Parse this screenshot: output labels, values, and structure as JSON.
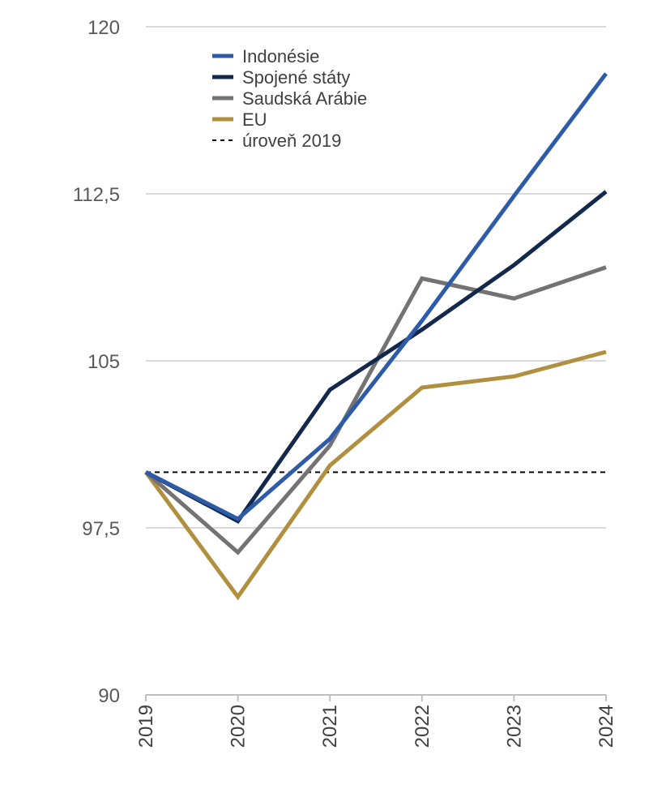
{
  "chart_data": {
    "type": "line",
    "title": "",
    "xlabel": "",
    "ylabel": "",
    "categories": [
      "2019",
      "2020",
      "2021",
      "2022",
      "2023",
      "2024"
    ],
    "ylim": [
      90,
      120
    ],
    "yticks": [
      90,
      97.5,
      105,
      112.5,
      120
    ],
    "ytick_labels": [
      "90",
      "97,5",
      "105",
      "112,5",
      "120"
    ],
    "grid": true,
    "legend_position": "top-left",
    "series": [
      {
        "name": "Indonésie",
        "color": "#2E5BA8",
        "values": [
          100,
          97.9,
          101.5,
          106.8,
          112.4,
          117.9
        ]
      },
      {
        "name": "Spojené státy",
        "color": "#13294B",
        "values": [
          100,
          97.8,
          103.7,
          106.4,
          109.3,
          112.6
        ]
      },
      {
        "name": "Saudská Arábie",
        "color": "#737373",
        "values": [
          100,
          96.4,
          101.2,
          108.7,
          107.8,
          109.2
        ]
      },
      {
        "name": "EU",
        "color": "#B08F3E",
        "values": [
          100,
          94.4,
          100.3,
          103.8,
          104.3,
          105.4
        ]
      }
    ],
    "reference_line": {
      "name": "úroveň 2019",
      "value": 100,
      "color": "#000000",
      "style": "dashed"
    }
  }
}
